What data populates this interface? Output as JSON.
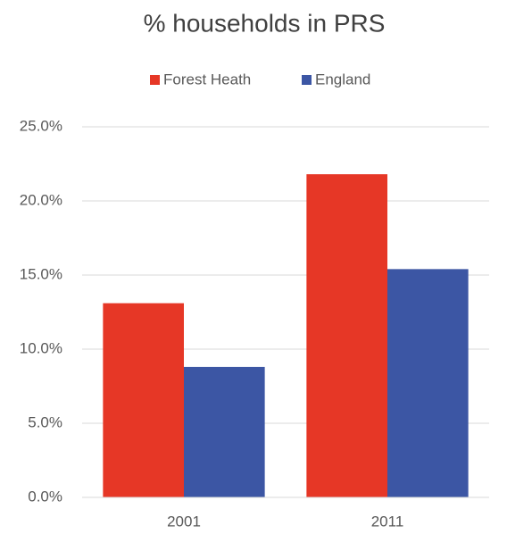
{
  "chart_data": {
    "type": "bar",
    "title": "% households in PRS",
    "categories": [
      "2001",
      "2011"
    ],
    "series": [
      {
        "name": "Forest Heath",
        "color": "#e63726",
        "values": [
          13.1,
          21.8
        ]
      },
      {
        "name": "England",
        "color": "#3c56a4",
        "values": [
          8.8,
          15.4
        ]
      }
    ],
    "ylim": [
      0,
      25
    ],
    "yticks": [
      {
        "value": 0,
        "label": "0.0%"
      },
      {
        "value": 5,
        "label": "5.0%"
      },
      {
        "value": 10,
        "label": "10.0%"
      },
      {
        "value": 15,
        "label": "15.0%"
      },
      {
        "value": 20,
        "label": "20.0%"
      },
      {
        "value": 25,
        "label": "25.0%"
      }
    ],
    "grid": true,
    "legend": "top"
  }
}
